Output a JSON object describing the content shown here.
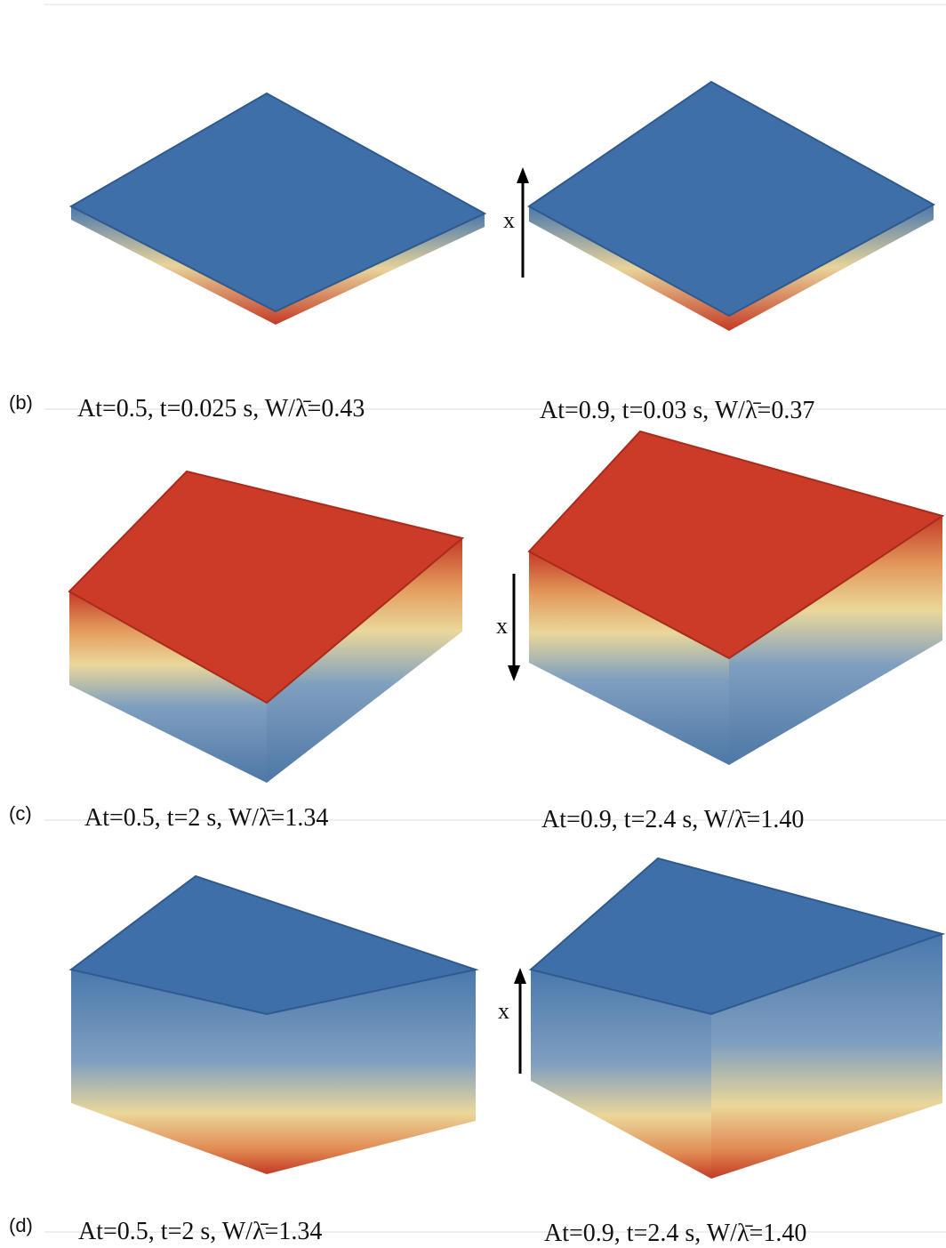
{
  "rows": [
    {
      "label": "(b)",
      "axis_label": "x",
      "captions": [
        "At=0.5, t=0.025 s, W/λ̄=0.43",
        "At=0.9, t=0.03 s, W/λ̄=0.37"
      ]
    },
    {
      "label": "(c)",
      "axis_label": "x",
      "captions": [
        "At=0.5, t=2 s, W/λ̄=1.34",
        "At=0.9, t=2.4 s, W/λ̄=1.40"
      ]
    },
    {
      "label": "(d)",
      "axis_label": "x",
      "captions": [
        "At=0.5, t=2 s, W/λ̄=1.34",
        "At=0.9, t=2.4 s, W/λ̄=1.40"
      ]
    }
  ]
}
